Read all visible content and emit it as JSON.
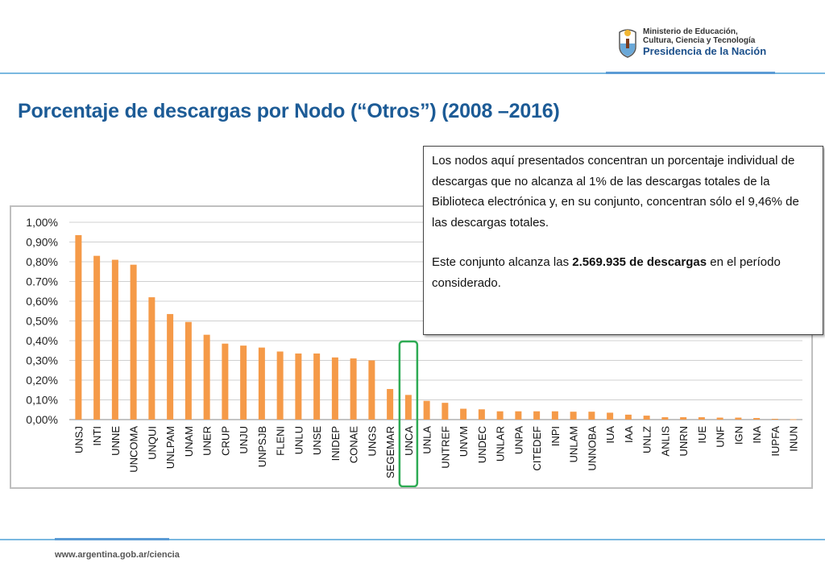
{
  "header": {
    "logo_line1": "Ministerio de Educación,",
    "logo_line2": "Cultura, Ciencia y Tecnología",
    "logo_line3": "Presidencia de la Nación"
  },
  "title": "Porcentaje de descargas por Nodo (“Otros”) (2008 –2016)",
  "note": {
    "paragraph1": "Los nodos aquí presentados concentran un porcentaje individual de descargas que no alcanza al 1% de las descargas totales de la Biblioteca electrónica y, en su conjunto, concentran sólo el  9,46% de las descargas totales.",
    "paragraph2_pre": "Este conjunto alcanza las ",
    "paragraph2_bold": "2.569.935 de descargas",
    "paragraph2_post": " en el período considerado."
  },
  "footer": {
    "url": "www.argentina.gob.ar/ciencia"
  },
  "colors": {
    "bar": "#f59a48",
    "title": "#1c5b96",
    "highlight": "#2eab54",
    "grid": "#d0d0d0"
  },
  "chart_data": {
    "type": "bar",
    "title": "",
    "xlabel": "",
    "ylabel": "",
    "ylim": [
      0,
      0.01
    ],
    "grid": true,
    "legend": "none",
    "highlighted_category": "UNCA",
    "yticks": [
      {
        "value": 0.0,
        "label": "0,00%"
      },
      {
        "value": 0.001,
        "label": "0,10%"
      },
      {
        "value": 0.002,
        "label": "0,20%"
      },
      {
        "value": 0.003,
        "label": "0,30%"
      },
      {
        "value": 0.004,
        "label": "0,40%"
      },
      {
        "value": 0.005,
        "label": "0,50%"
      },
      {
        "value": 0.006,
        "label": "0,60%"
      },
      {
        "value": 0.007,
        "label": "0.70%"
      },
      {
        "value": 0.008,
        "label": "0,80%"
      },
      {
        "value": 0.009,
        "label": "0,90%"
      },
      {
        "value": 0.01,
        "label": "1,00%"
      }
    ],
    "categories": [
      "UNSJ",
      "INTI",
      "UNNE",
      "UNCOMA",
      "UNQUI",
      "UNLPAM",
      "UNAM",
      "UNER",
      "CRUP",
      "UNJU",
      "UNPSJB",
      "FLENI",
      "UNLU",
      "UNSE",
      "INIDEP",
      "CONAE",
      "UNGS",
      "SEGEMAR",
      "UNCA",
      "UNLA",
      "UNTREF",
      "UNVM",
      "UNDEC",
      "UNLAR",
      "UNPA",
      "CITEDEF",
      "INPI",
      "UNLAM",
      "UNNOBA",
      "IUA",
      "IAA",
      "UNLZ",
      "ANLIS",
      "UNRN",
      "IUE",
      "UNF",
      "IGN",
      "INA",
      "IUPFA",
      "INUN"
    ],
    "values": [
      0.00935,
      0.0083,
      0.0081,
      0.00785,
      0.0062,
      0.00535,
      0.00495,
      0.0043,
      0.00385,
      0.00375,
      0.00365,
      0.00345,
      0.00335,
      0.00335,
      0.00315,
      0.0031,
      0.003,
      0.00155,
      0.00125,
      0.00095,
      0.00085,
      0.00055,
      0.00052,
      0.00042,
      0.00042,
      0.00042,
      0.00042,
      0.0004,
      0.0004,
      0.00035,
      0.00025,
      0.0002,
      0.00012,
      0.00012,
      0.00012,
      0.0001,
      0.0001,
      8e-05,
      4e-05,
      2e-05
    ]
  }
}
